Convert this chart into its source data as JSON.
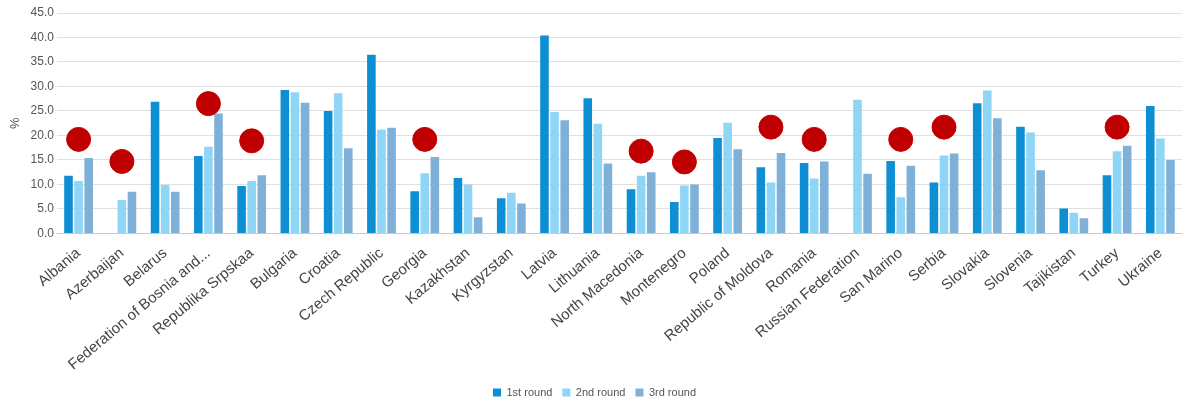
{
  "chart_data": {
    "type": "bar",
    "ylabel": "%",
    "categories": [
      "Albania",
      "Azerbaijan",
      "Belarus",
      "Federation of Bosnia and...",
      "Republika Srpskaa",
      "Bulgaria",
      "Croatia",
      "Czech Republic",
      "Georgia",
      "Kazakhstan",
      "Kyrgyzstan",
      "Latvia",
      "Lithuania",
      "North Macedonia",
      "Montenegro",
      "Poland",
      "Republic of Moldova",
      "Romania",
      "Russian Federation",
      "San Marino",
      "Serbia",
      "Slovakia",
      "Slovenia",
      "Tajikistan",
      "Turkey",
      "Ukraine"
    ],
    "series": [
      {
        "name": "1st round",
        "color": "#0e8ed3",
        "values": [
          11.8,
          null,
          26.9,
          15.8,
          9.7,
          29.3,
          25.0,
          36.5,
          8.6,
          11.3,
          7.2,
          40.4,
          27.6,
          9.0,
          6.4,
          19.5,
          13.5,
          14.4,
          null,
          14.8,
          10.4,
          26.6,
          21.8,
          5.1,
          11.9,
          26.0
        ]
      },
      {
        "name": "2nd round",
        "color": "#8fd5f5",
        "values": [
          10.7,
          6.8,
          9.9,
          17.7,
          10.7,
          28.8,
          28.6,
          21.2,
          12.3,
          10.0,
          8.3,
          24.8,
          22.4,
          11.8,
          9.8,
          22.6,
          10.4,
          11.2,
          27.3,
          7.4,
          15.9,
          29.2,
          20.6,
          4.2,
          16.8,
          19.4
        ]
      },
      {
        "name": "3rd round",
        "color": "#7fb1d8",
        "values": [
          15.4,
          8.5,
          8.5,
          24.5,
          11.9,
          26.7,
          17.4,
          21.6,
          15.6,
          3.3,
          6.1,
          23.1,
          14.3,
          12.5,
          10.0,
          17.2,
          16.4,
          14.7,
          12.2,
          13.8,
          16.3,
          23.5,
          12.9,
          3.1,
          17.9,
          15.0
        ]
      },
      {
        "type": "scatter",
        "color": "#c00000",
        "x": [
          "Albania",
          "Azerbaijan",
          "Federation of Bosnia and...",
          "Republika Srpskaa",
          "Georgia",
          "North Macedonia",
          "Montenegro",
          "Republic of Moldova",
          "Romania",
          "San Marino",
          "Serbia",
          "Turkey"
        ],
        "values": [
          19.2,
          14.7,
          26.5,
          18.9,
          19.2,
          16.8,
          14.6,
          21.7,
          19.2,
          19.2,
          21.7,
          21.7
        ]
      }
    ],
    "ylim": [
      0,
      45
    ],
    "yticks": [
      {
        "value": 0,
        "label": "0.0"
      },
      {
        "value": 5,
        "label": "5.0"
      },
      {
        "value": 10,
        "label": "10.0"
      },
      {
        "value": 15,
        "label": "15.0"
      },
      {
        "value": 20,
        "label": "20.0"
      },
      {
        "value": 25,
        "label": "25.0"
      },
      {
        "value": 30,
        "label": "30.0"
      },
      {
        "value": 35,
        "label": "35.0"
      },
      {
        "value": 40,
        "label": "40.0"
      },
      {
        "value": 45,
        "label": "45.0"
      }
    ],
    "grid": "y",
    "legend": "bottom",
    "marker": "circle"
  }
}
